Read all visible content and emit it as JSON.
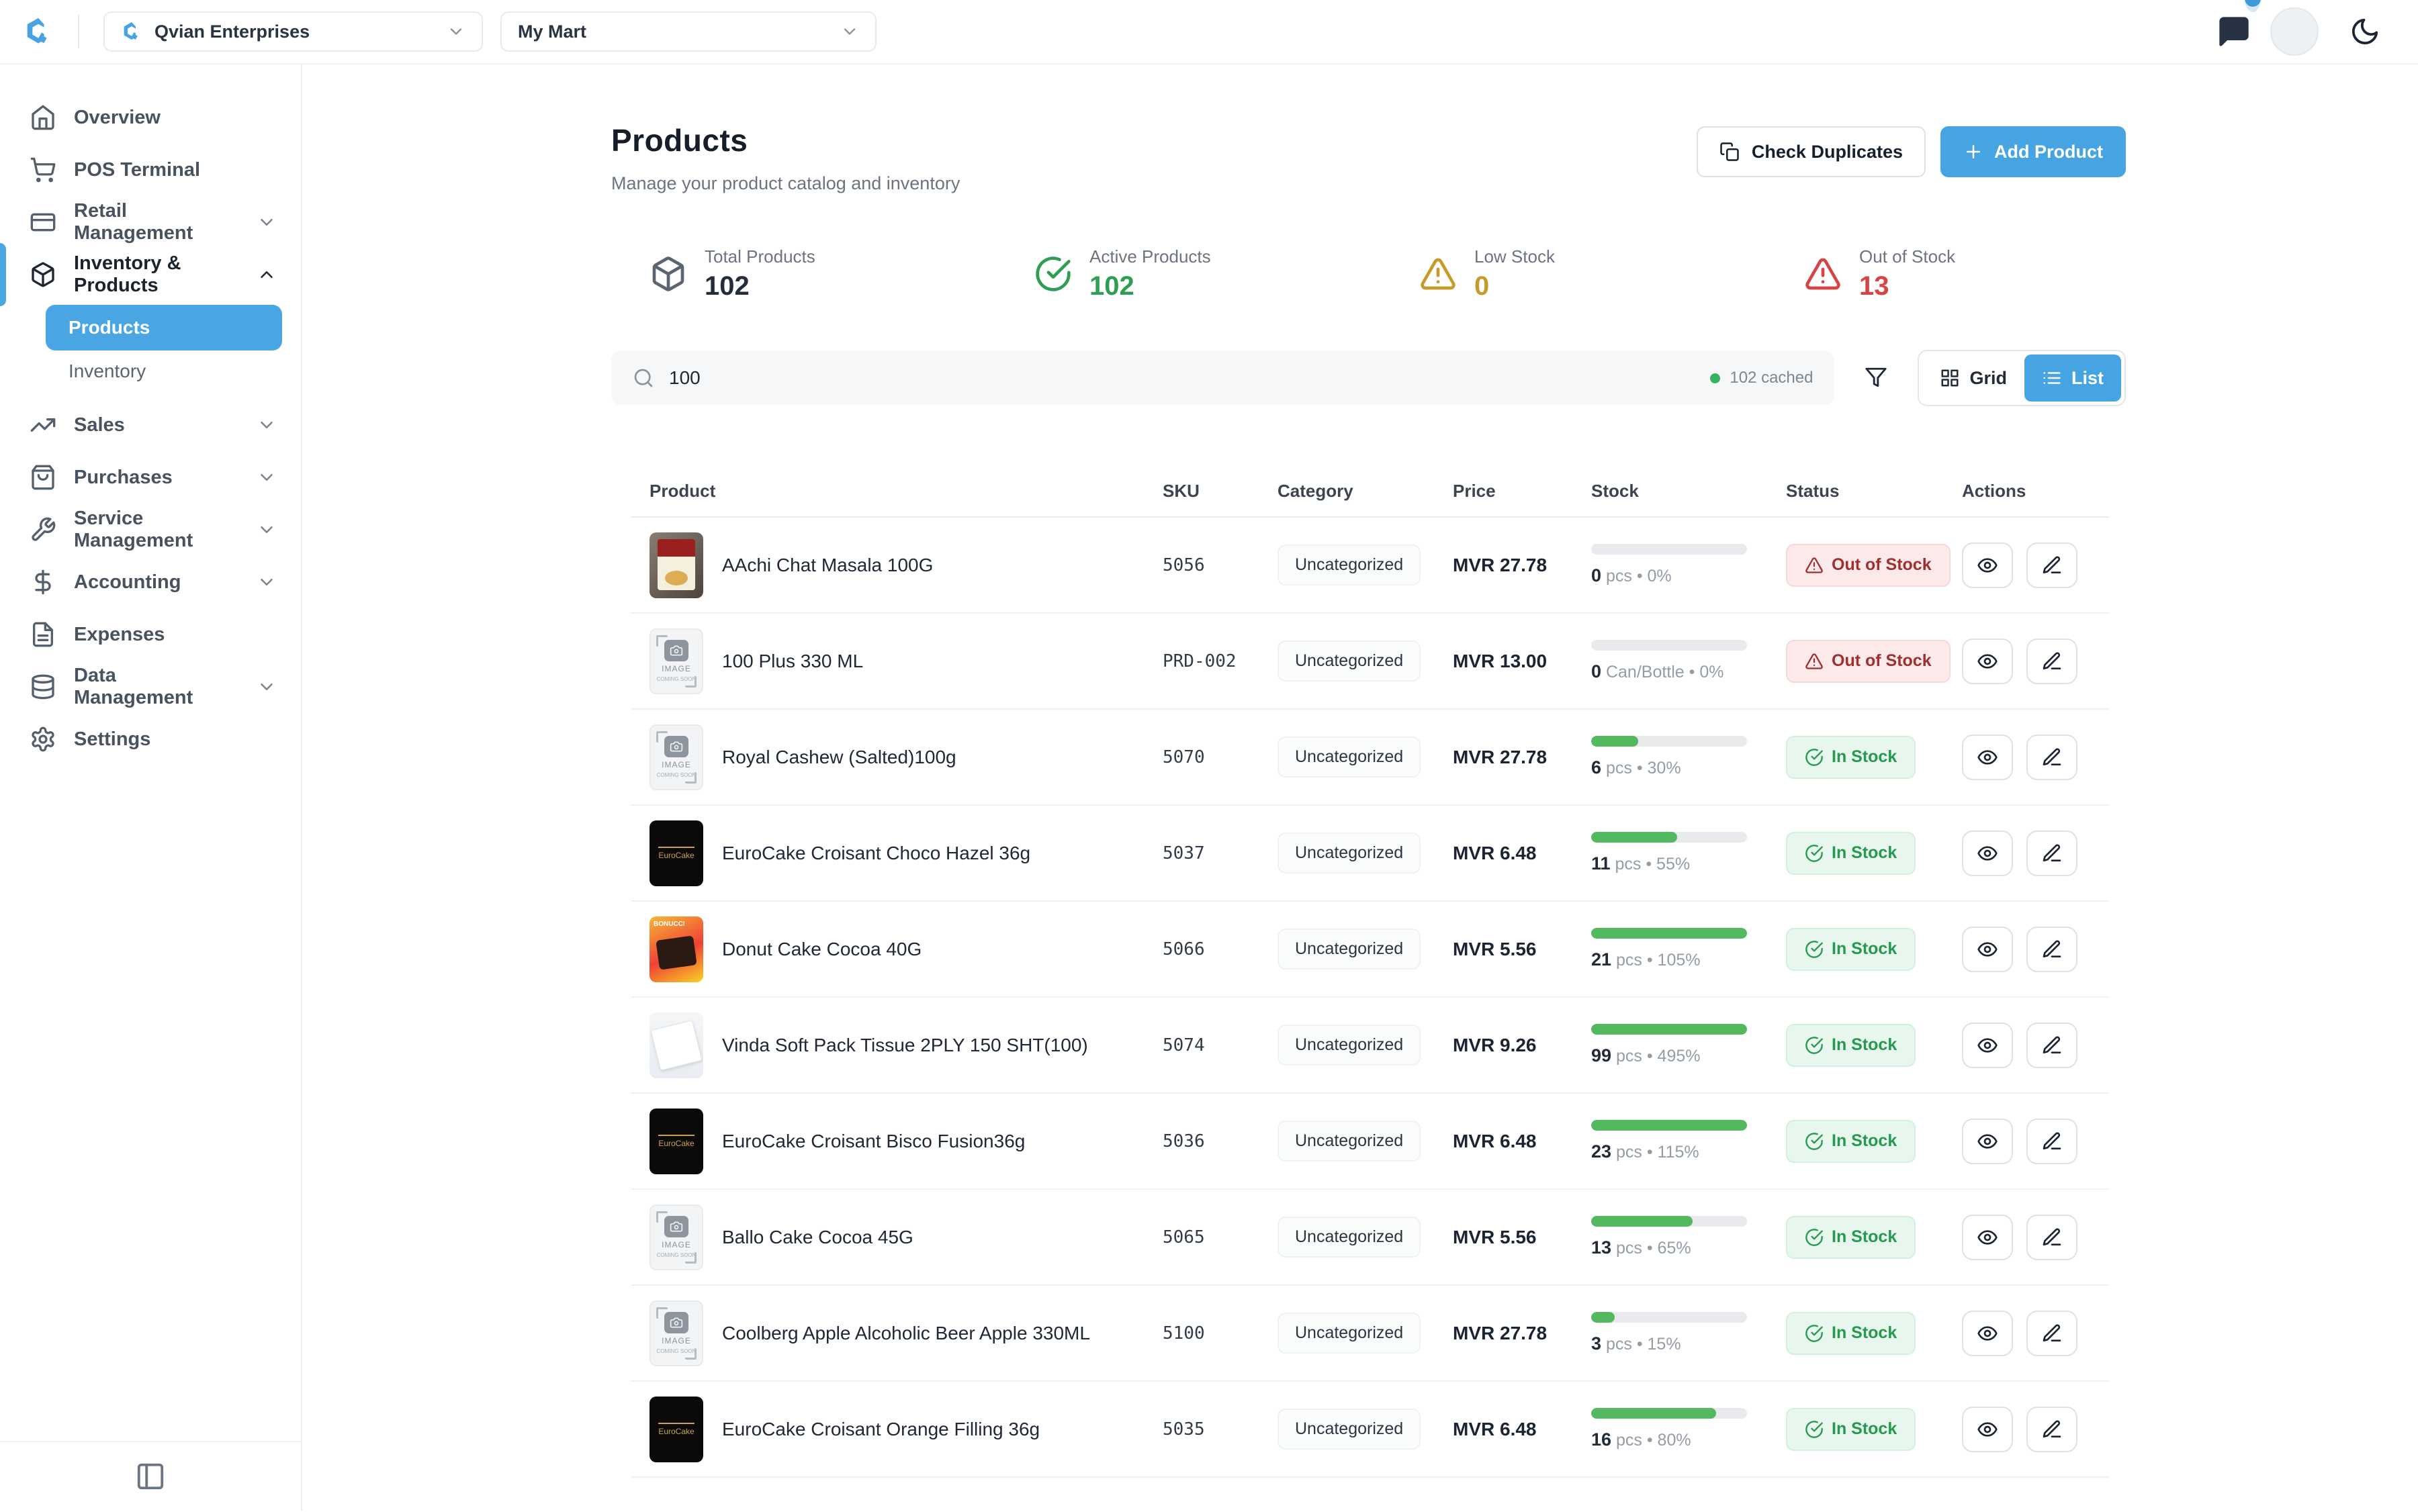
{
  "topbar": {
    "org_label": "Qvian Enterprises",
    "store_label": "My Mart"
  },
  "sidebar": {
    "items": [
      {
        "label": "Overview",
        "icon": "home"
      },
      {
        "label": "POS Terminal",
        "icon": "shopping-cart"
      },
      {
        "label": "Retail Management",
        "icon": "credit-card",
        "chevron": "down"
      },
      {
        "label": "Inventory & Products",
        "icon": "package",
        "chevron": "up",
        "active": true,
        "children": [
          {
            "label": "Products",
            "active": true
          },
          {
            "label": "Inventory"
          }
        ]
      },
      {
        "label": "Sales",
        "icon": "trending-up",
        "chevron": "down"
      },
      {
        "label": "Purchases",
        "icon": "shopping-bag",
        "chevron": "down"
      },
      {
        "label": "Service Management",
        "icon": "wrench",
        "chevron": "down"
      },
      {
        "label": "Accounting",
        "icon": "dollar-sign",
        "chevron": "down"
      },
      {
        "label": "Expenses",
        "icon": "file-text"
      },
      {
        "label": "Data Management",
        "icon": "database",
        "chevron": "down"
      },
      {
        "label": "Settings",
        "icon": "gear"
      }
    ]
  },
  "header": {
    "title": "Products",
    "subtitle": "Manage your product catalog and inventory",
    "check_duplicates_label": "Check Duplicates",
    "add_product_label": "Add Product"
  },
  "stats": [
    {
      "label": "Total Products",
      "value": "102",
      "icon": "package",
      "color": "#242d3a",
      "icon_color": "#5b6572"
    },
    {
      "label": "Active Products",
      "value": "102",
      "icon": "check-circle",
      "color": "#2e9e52",
      "icon_color": "#2e9e52"
    },
    {
      "label": "Low Stock",
      "value": "0",
      "icon": "alert-triangle",
      "color": "#c79a2a",
      "icon_color": "#c79a2a"
    },
    {
      "label": "Out of Stock",
      "value": "13",
      "icon": "alert-triangle",
      "color": "#d64444",
      "icon_color": "#d64444"
    }
  ],
  "toolbar": {
    "search_value": "100",
    "cached_label": "102 cached",
    "grid_label": "Grid",
    "list_label": "List",
    "active_view": "List"
  },
  "statuses": {
    "in": "In Stock",
    "out": "Out of Stock"
  },
  "thumbs": {
    "placeholder_line1": "IMAGE",
    "placeholder_line2": "COMING SOON",
    "eurocake_label": "EuroCake",
    "bonucci_label": "BONUCCI"
  },
  "table": {
    "columns": [
      "Product",
      "SKU",
      "Category",
      "Price",
      "Stock",
      "Status",
      "Actions"
    ],
    "rows": [
      {
        "name": "AAchi Chat Masala 100G",
        "sku": "5056",
        "category": "Uncategorized",
        "price": "MVR 27.78",
        "qty": "0",
        "unit": "pcs",
        "pct": "0%",
        "bar": 0,
        "status": "out",
        "thumb": "photo"
      },
      {
        "name": "100 Plus 330 ML",
        "sku": "PRD-002",
        "category": "Uncategorized",
        "price": "MVR 13.00",
        "qty": "0",
        "unit": "Can/Bottle",
        "pct": "0%",
        "bar": 0,
        "status": "out",
        "thumb": "placeholder"
      },
      {
        "name": "Royal Cashew (Salted)100g",
        "sku": "5070",
        "category": "Uncategorized",
        "price": "MVR 27.78",
        "qty": "6",
        "unit": "pcs",
        "pct": "30%",
        "bar": 30,
        "status": "in",
        "thumb": "placeholder"
      },
      {
        "name": "EuroCake Croisant Choco Hazel 36g",
        "sku": "5037",
        "category": "Uncategorized",
        "price": "MVR 6.48",
        "qty": "11",
        "unit": "pcs",
        "pct": "55%",
        "bar": 55,
        "status": "in",
        "thumb": "eurocake"
      },
      {
        "name": "Donut Cake Cocoa 40G",
        "sku": "5066",
        "category": "Uncategorized",
        "price": "MVR 5.56",
        "qty": "21",
        "unit": "pcs",
        "pct": "105%",
        "bar": 100,
        "status": "in",
        "thumb": "bonucci"
      },
      {
        "name": "Vinda Soft Pack Tissue 2PLY 150 SHT(100)",
        "sku": "5074",
        "category": "Uncategorized",
        "price": "MVR 9.26",
        "qty": "99",
        "unit": "pcs",
        "pct": "495%",
        "bar": 100,
        "status": "in",
        "thumb": "tissue"
      },
      {
        "name": "EuroCake Croisant Bisco Fusion36g",
        "sku": "5036",
        "category": "Uncategorized",
        "price": "MVR 6.48",
        "qty": "23",
        "unit": "pcs",
        "pct": "115%",
        "bar": 100,
        "status": "in",
        "thumb": "eurocake"
      },
      {
        "name": "Ballo Cake Cocoa 45G",
        "sku": "5065",
        "category": "Uncategorized",
        "price": "MVR 5.56",
        "qty": "13",
        "unit": "pcs",
        "pct": "65%",
        "bar": 65,
        "status": "in",
        "thumb": "placeholder"
      },
      {
        "name": "Coolberg Apple Alcoholic Beer Apple 330ML",
        "sku": "5100",
        "category": "Uncategorized",
        "price": "MVR 27.78",
        "qty": "3",
        "unit": "pcs",
        "pct": "15%",
        "bar": 15,
        "status": "in",
        "thumb": "placeholder"
      },
      {
        "name": "EuroCake Croisant Orange Filling 36g",
        "sku": "5035",
        "category": "Uncategorized",
        "price": "MVR 6.48",
        "qty": "16",
        "unit": "pcs",
        "pct": "80%",
        "bar": 80,
        "status": "in",
        "thumb": "eurocake"
      }
    ]
  },
  "colors": {
    "accent": "#47a4e2",
    "green": "#2e9e52",
    "amber": "#c79a2a",
    "red": "#d64444",
    "progress": "#53b95f"
  }
}
